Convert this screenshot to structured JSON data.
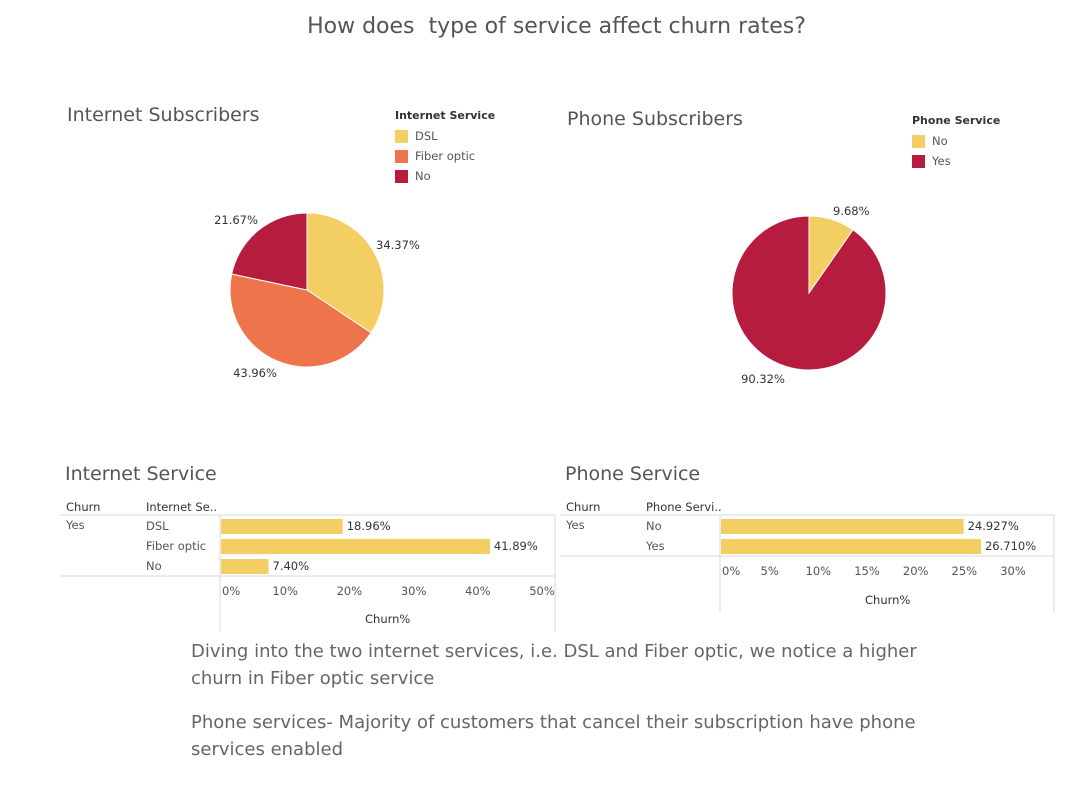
{
  "title": "How does  type of service affect churn rates?",
  "colors": {
    "yellow": "#F2CE63",
    "orange": "#EE744B",
    "red": "#B61C3E",
    "bar": "#F2CE63"
  },
  "internet_pie": {
    "title": "Internet Subscribers",
    "legend_title": "Internet Service",
    "legend": [
      {
        "label": "DSL",
        "color": "#F2CE63"
      },
      {
        "label": "Fiber optic",
        "color": "#EE744B"
      },
      {
        "label": "No",
        "color": "#B61C3E"
      }
    ]
  },
  "phone_pie": {
    "title": "Phone Subscribers",
    "legend_title": "Phone Service",
    "legend": [
      {
        "label": "No",
        "color": "#F2CE63"
      },
      {
        "label": "Yes",
        "color": "#B61C3E"
      }
    ]
  },
  "internet_bar": {
    "title": "Internet Service",
    "col1_header": "Churn",
    "col2_header": "Internet Se..",
    "churn_value": "Yes",
    "axis_title": "Churn%"
  },
  "phone_bar": {
    "title": "Phone Service",
    "col1_header": "Churn",
    "col2_header": "Phone Servi..",
    "churn_value": "Yes",
    "axis_title": "Churn%"
  },
  "notes": [
    "Diving into the two internet services, i.e. DSL and Fiber optic, we notice a higher churn in Fiber optic service",
    "Phone services- Majority of customers that cancel their subscription have phone services enabled"
  ],
  "chart_data": [
    {
      "type": "pie",
      "title": "Internet Subscribers",
      "legend_title": "Internet Service",
      "categories": [
        "DSL",
        "Fiber optic",
        "No"
      ],
      "values": [
        34.37,
        43.96,
        21.67
      ],
      "labels": [
        "34.37%",
        "43.96%",
        "21.67%"
      ]
    },
    {
      "type": "pie",
      "title": "Phone Subscribers",
      "legend_title": "Phone Service",
      "categories": [
        "No",
        "Yes"
      ],
      "values": [
        9.68,
        90.32
      ],
      "labels": [
        "9.68%",
        "90.32%"
      ]
    },
    {
      "type": "bar",
      "title": "Internet Service",
      "categories": [
        "DSL",
        "Fiber optic",
        "No"
      ],
      "values": [
        18.96,
        41.89,
        7.4
      ],
      "labels": [
        "18.96%",
        "41.89%",
        "7.40%"
      ],
      "xlabel": "Churn%",
      "xlim": [
        0,
        50
      ],
      "ticks": [
        "0%",
        "10%",
        "20%",
        "30%",
        "40%",
        "50%"
      ]
    },
    {
      "type": "bar",
      "title": "Phone Service",
      "categories": [
        "No",
        "Yes"
      ],
      "values": [
        24.927,
        26.71
      ],
      "labels": [
        "24.927%",
        "26.710%"
      ],
      "xlabel": "Churn%",
      "xlim": [
        0,
        30
      ],
      "ticks": [
        "0%",
        "5%",
        "10%",
        "15%",
        "20%",
        "25%",
        "30%"
      ]
    }
  ]
}
